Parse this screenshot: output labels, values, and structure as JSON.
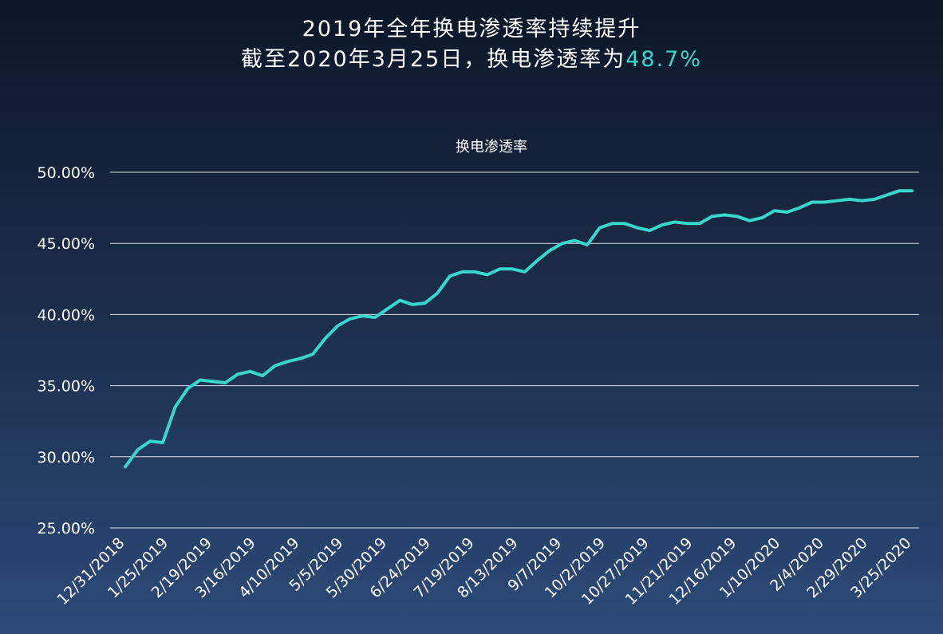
{
  "header": {
    "line1": "2019年全年换电渗透率持续提升",
    "line2_prefix": "截至2020年3月25日，换电渗透率为",
    "line2_value": "48.7%"
  },
  "colors": {
    "line": "#38d7cc",
    "highlight": "#3ed6c8",
    "text": "#ffffff"
  },
  "chart_data": {
    "type": "line",
    "title": "换电渗透率",
    "xlabel": "",
    "ylabel": "",
    "ylim": [
      25,
      50
    ],
    "yticks": [
      "25.00%",
      "30.00%",
      "35.00%",
      "40.00%",
      "45.00%",
      "50.00%"
    ],
    "ytick_values": [
      25,
      30,
      35,
      40,
      45,
      50
    ],
    "xtick_labels": [
      "12/31/2018",
      "1/25/2019",
      "2/19/2019",
      "3/16/2019",
      "4/10/2019",
      "5/5/2019",
      "5/30/2019",
      "6/24/2019",
      "7/19/2019",
      "8/13/2019",
      "9/7/2019",
      "10/2/2019",
      "10/27/2019",
      "11/21/2019",
      "12/16/2019",
      "1/10/2020",
      "2/4/2020",
      "2/29/2020",
      "3/25/2020"
    ],
    "grid": true,
    "legend": "none",
    "series": [
      {
        "values": [
          29.3,
          30.5,
          31.1,
          31.0,
          33.5,
          34.8,
          35.4,
          35.3,
          35.2,
          35.8,
          36.0,
          35.7,
          36.4,
          36.7,
          36.9,
          37.2,
          38.3,
          39.2,
          39.7,
          39.9,
          39.8,
          40.4,
          41.0,
          40.7,
          40.8,
          41.5,
          42.7,
          43.0,
          43.0,
          42.8,
          43.2,
          43.2,
          43.0,
          43.8,
          44.5,
          45.0,
          45.2,
          44.9,
          46.1,
          46.4,
          46.4,
          46.1,
          45.9,
          46.3,
          46.5,
          46.4,
          46.4,
          46.9,
          47.0,
          46.9,
          46.6,
          46.8,
          47.3,
          47.2,
          47.5,
          47.9,
          47.9,
          48.0,
          48.1,
          48.0,
          48.1,
          48.4,
          48.7,
          48.7
        ]
      }
    ]
  }
}
